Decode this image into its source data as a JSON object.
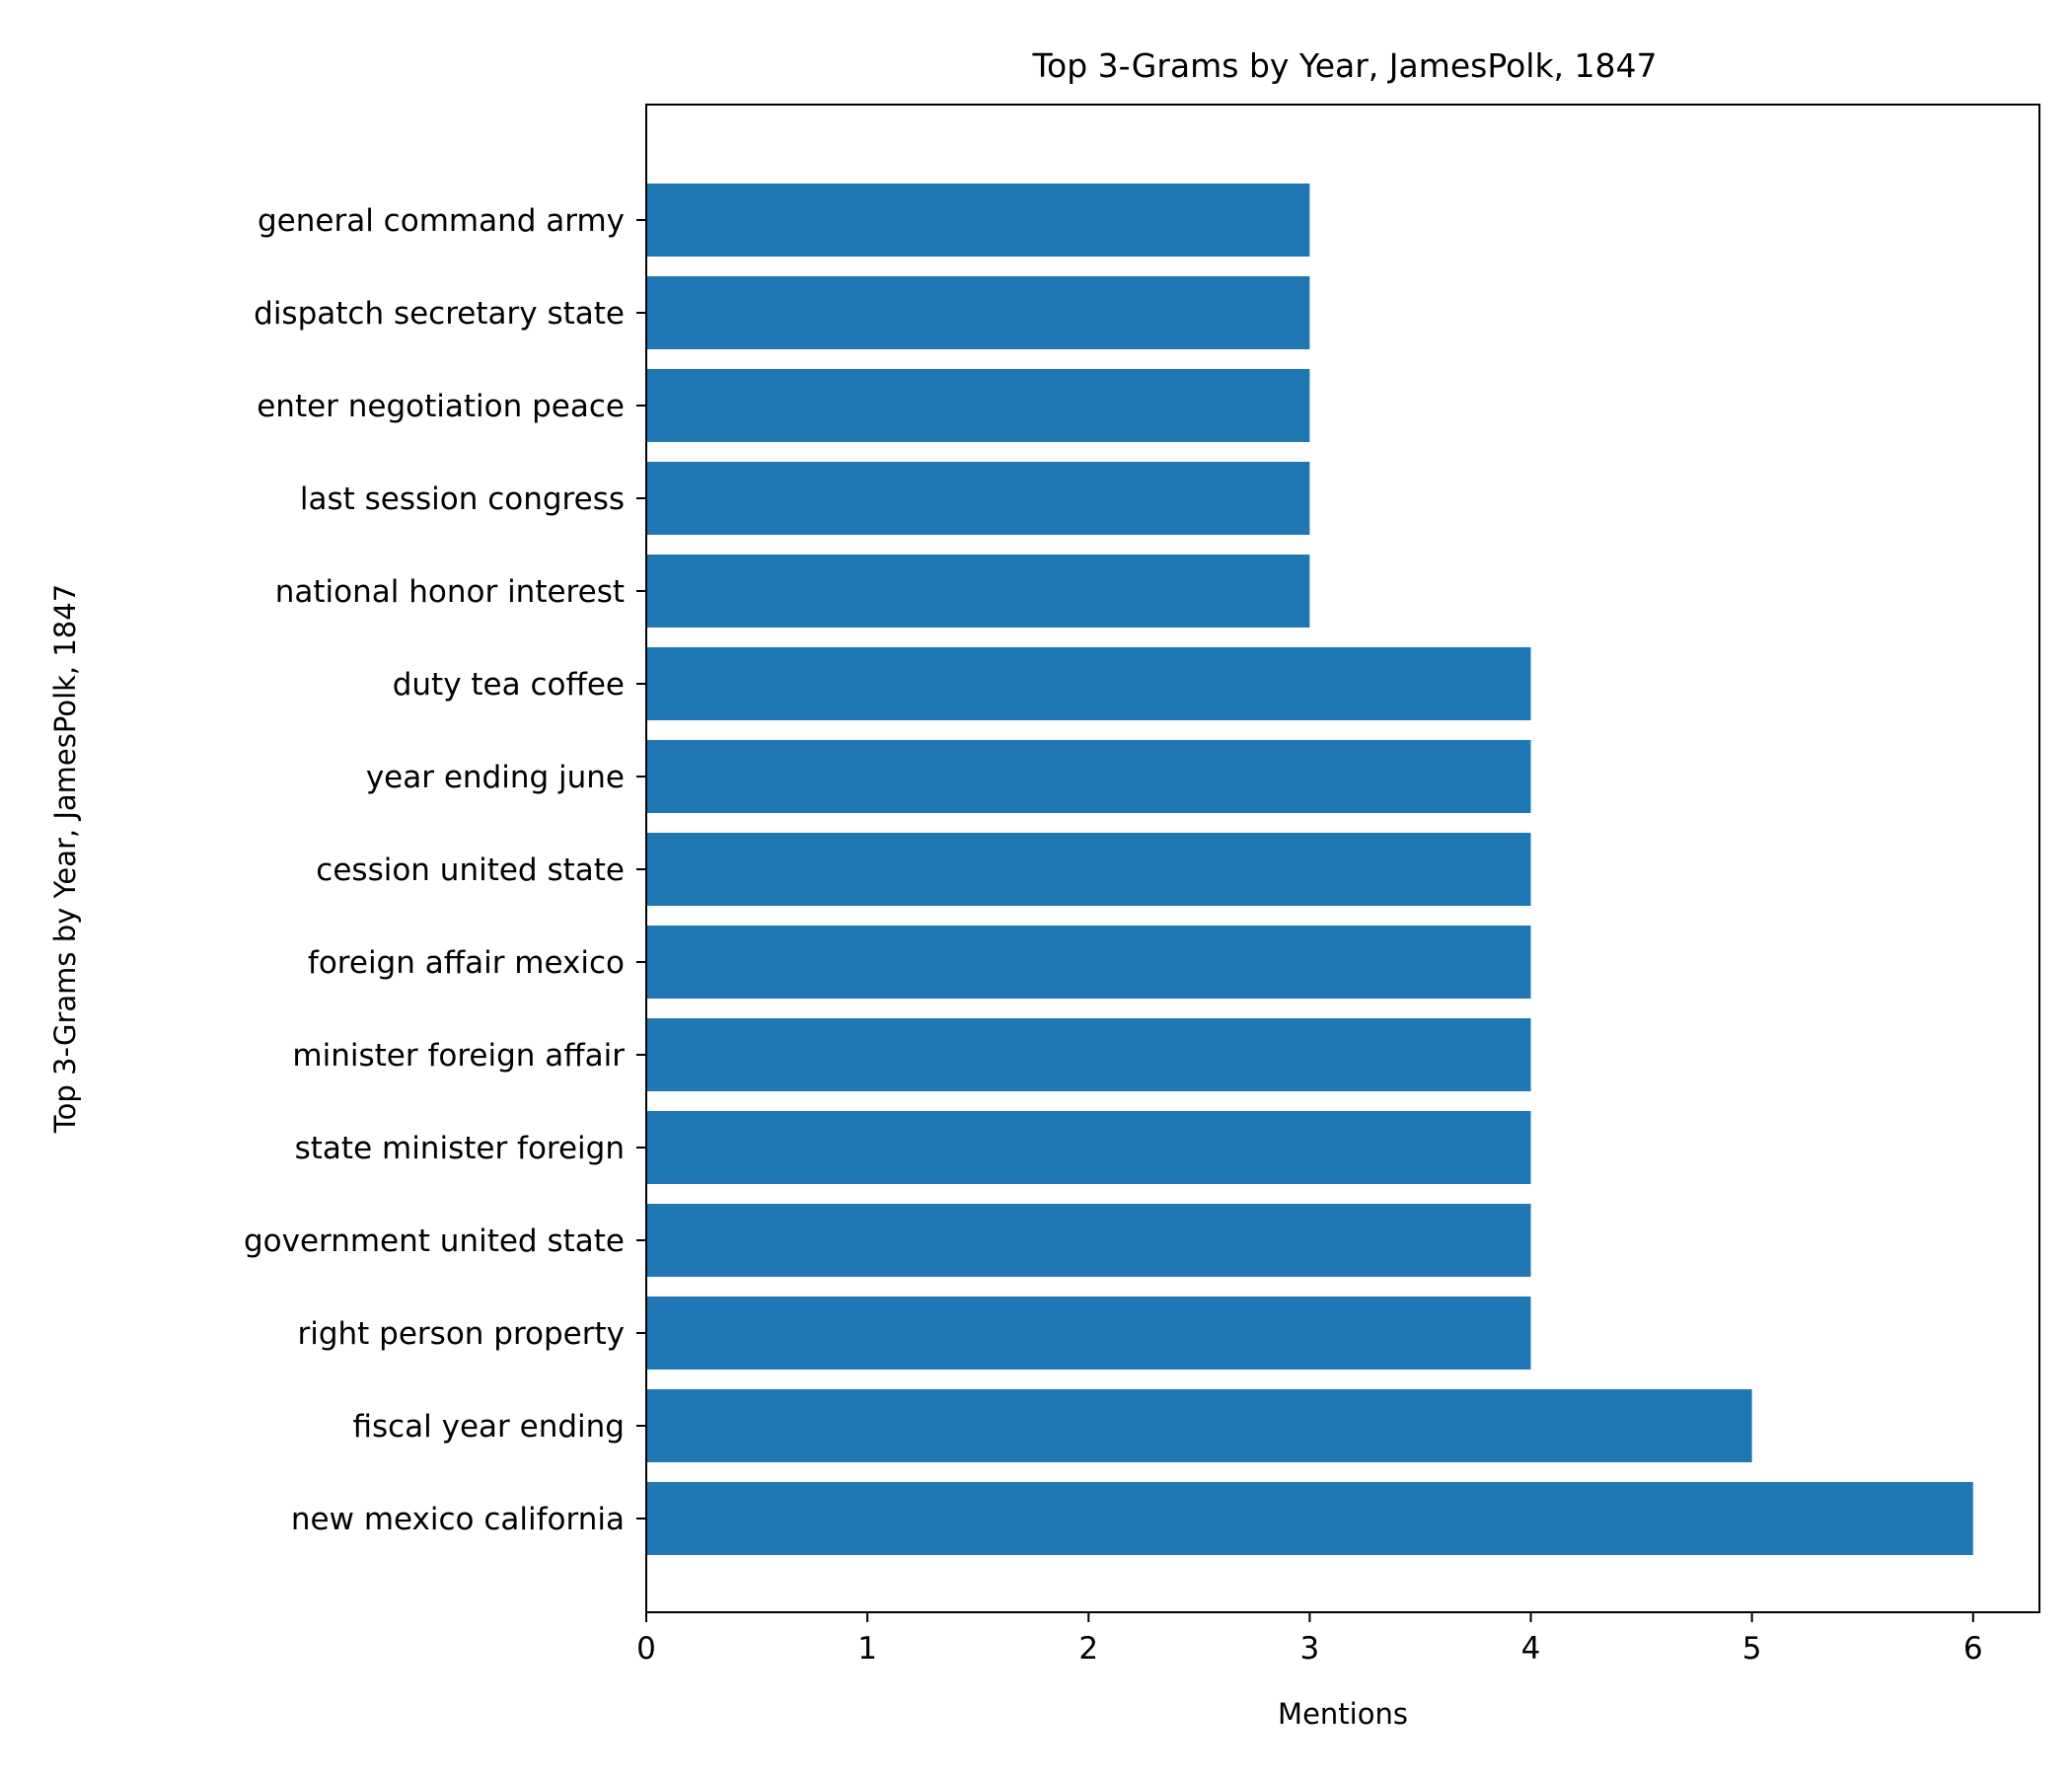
{
  "chart_data": {
    "type": "bar",
    "orientation": "horizontal",
    "title": "Top 3-Grams by Year, JamesPolk, 1847",
    "xlabel": "Mentions",
    "ylabel": "Top 3-Grams by Year, JamesPolk, 1847",
    "categories": [
      "new mexico california",
      "fiscal year ending",
      "right person property",
      "government united state",
      "state minister foreign",
      "minister foreign affair",
      "foreign affair mexico",
      "cession united state",
      "year ending june",
      "duty tea coffee",
      "national honor interest",
      "last session congress",
      "enter negotiation peace",
      "dispatch secretary state",
      "general command army"
    ],
    "values": [
      6,
      5,
      4,
      4,
      4,
      4,
      4,
      4,
      4,
      4,
      3,
      3,
      3,
      3,
      3
    ],
    "xlim": [
      0,
      6.3
    ],
    "xticks": [
      0,
      1,
      2,
      3,
      4,
      5,
      6
    ],
    "grid": false,
    "legend": "none",
    "bar_color": "#1f77b4"
  }
}
